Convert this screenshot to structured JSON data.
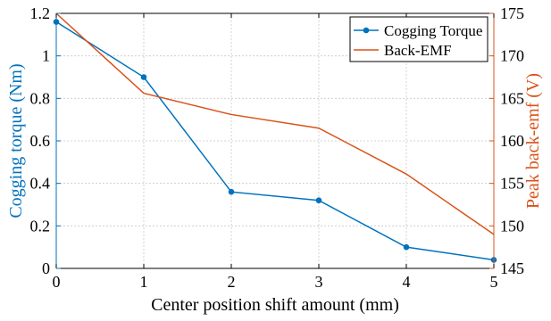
{
  "chart_data": {
    "type": "line",
    "x": [
      0,
      1,
      2,
      3,
      4,
      5
    ],
    "xlabel": "Center position shift amount (mm)",
    "xlim": [
      0,
      5
    ],
    "xticks": [
      "0",
      "1",
      "2",
      "3",
      "4",
      "5"
    ],
    "grid": true,
    "legend_position": "top-right",
    "series": [
      {
        "name": "Cogging Torque",
        "axis": "left",
        "color": "#0072BD",
        "marker": "circle",
        "values": [
          1.16,
          0.9,
          0.36,
          0.32,
          0.1,
          0.04
        ]
      },
      {
        "name": "Back-EMF",
        "axis": "right",
        "color": "#D95319",
        "marker": "none",
        "values": [
          175.0,
          165.6,
          163.1,
          161.5,
          156.1,
          149.0
        ]
      }
    ],
    "y_left": {
      "label": "Cogging torque (Nm)",
      "lim": [
        0,
        1.2
      ],
      "ticks": [
        "0",
        "0.2",
        "0.4",
        "0.6",
        "0.8",
        "1",
        "1.2"
      ],
      "color": "#0072BD"
    },
    "y_right": {
      "label": "Peak back-emf (V)",
      "lim": [
        145,
        175
      ],
      "ticks": [
        "145",
        "150",
        "155",
        "160",
        "165",
        "170",
        "175"
      ],
      "color": "#D95319"
    }
  }
}
